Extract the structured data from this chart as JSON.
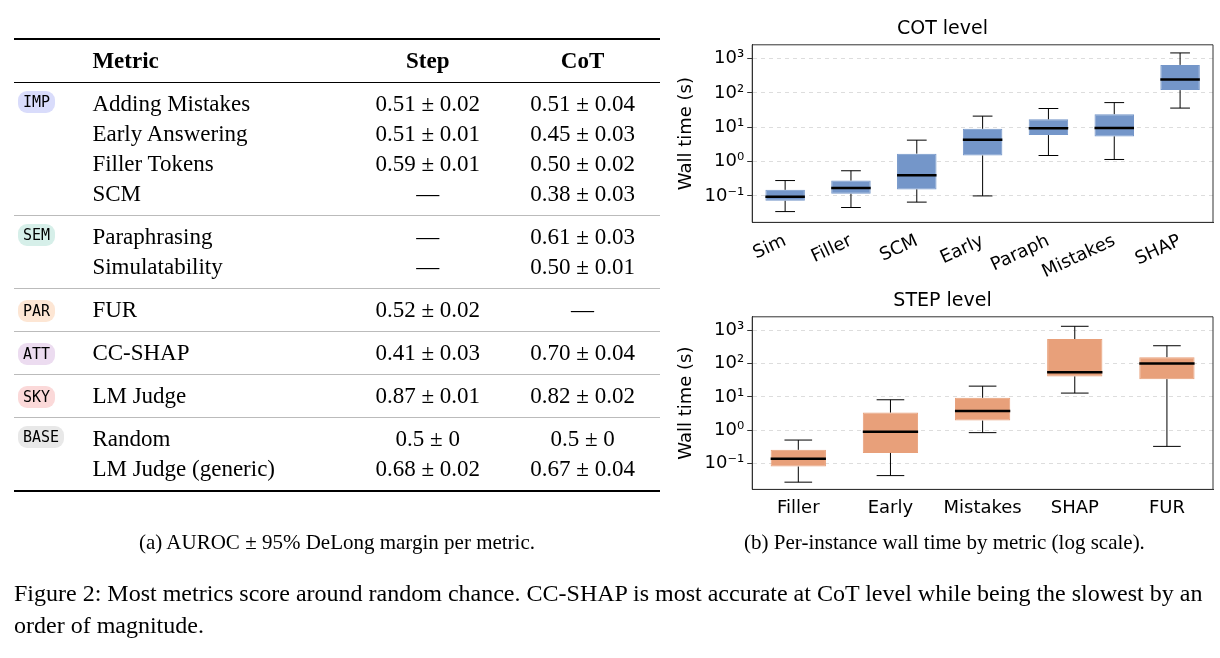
{
  "chart_data": [
    {
      "type": "other",
      "ylabel": "Metric",
      "categories": [
        "Step",
        "CoT"
      ],
      "y_categories": [
        "Adding Mistakes",
        "Early Answering",
        "Filler Tokens",
        "SCM",
        "Paraphrasing",
        "Simulatability",
        "FUR",
        "CC-SHAP",
        "LM Judge",
        "Random",
        "LM Judge (generic)"
      ],
      "y2_categories": [
        "IMP",
        null,
        null,
        null,
        "SEM",
        null,
        "PAR",
        "ATT",
        "SKY",
        "BASE",
        null
      ],
      "cell_labels": [
        [
          "0.51 ± 0.02",
          "0.51 ± 0.04"
        ],
        [
          "0.51 ± 0.01",
          "0.45 ± 0.03"
        ],
        [
          "0.59 ± 0.01",
          "0.50 ± 0.02"
        ],
        [
          "—",
          "0.38 ± 0.03"
        ],
        [
          "—",
          "0.61 ± 0.03"
        ],
        [
          "—",
          "0.50 ± 0.01"
        ],
        [
          "0.52 ± 0.02",
          "—"
        ],
        [
          "0.41 ± 0.03",
          "0.70 ± 0.04"
        ],
        [
          "0.87 ± 0.01",
          "0.82 ± 0.02"
        ],
        [
          "0.5 ± 0",
          "0.5 ± 0"
        ],
        [
          "0.68 ± 0.02",
          "0.67 ± 0.04"
        ]
      ],
      "annotations": [
        "(a) AUROC ± 95% DeLong margin per metric.",
        "Figure 2: Most metrics score around random chance. CC-SHAP is most accurate at CoT level while being the slowest by an order of magnitude."
      ]
    },
    {
      "type": "box",
      "title": "COT level",
      "ylabel": "Wall time (s)",
      "log": true,
      "grid": "y",
      "color": "#7496c9",
      "categories": [
        "Sim",
        "Filler",
        "SCM",
        "Early",
        "Paraph",
        "Mistakes",
        "SHAP"
      ],
      "ylim": [
        0.017,
        2500
      ],
      "yticks": [
        {
          "value": 0.1,
          "label": "10⁻¹"
        },
        {
          "value": 1,
          "label": "10⁰"
        },
        {
          "value": 10,
          "label": "10¹"
        },
        {
          "value": 100,
          "label": "10²"
        },
        {
          "value": 1000,
          "label": "10³"
        }
      ],
      "boxes": [
        {
          "low": 0.035,
          "q1": 0.072,
          "median": 0.095,
          "q3": 0.15,
          "high": 0.28
        },
        {
          "low": 0.046,
          "q1": 0.115,
          "median": 0.17,
          "q3": 0.28,
          "high": 0.54
        },
        {
          "low": 0.066,
          "q1": 0.155,
          "median": 0.4,
          "q3": 1.7,
          "high": 4.2
        },
        {
          "low": 0.1,
          "q1": 1.5,
          "median": 4.3,
          "q3": 9,
          "high": 21
        },
        {
          "low": 1.5,
          "q1": 5.9,
          "median": 9.3,
          "q3": 17,
          "high": 35
        },
        {
          "low": 1.15,
          "q1": 5.4,
          "median": 9.5,
          "q3": 24,
          "high": 52
        },
        {
          "low": 36,
          "q1": 120,
          "median": 245,
          "q3": 650,
          "high": 1450
        }
      ]
    },
    {
      "type": "box",
      "title": "STEP level",
      "ylabel": "Wall time (s)",
      "log": true,
      "grid": "y",
      "color": "#e8a07a",
      "categories": [
        "Filler",
        "Early",
        "Mistakes",
        "SHAP",
        "FUR"
      ],
      "ylim": [
        0.017,
        2500
      ],
      "yticks": [
        {
          "value": 0.1,
          "label": "10⁻¹"
        },
        {
          "value": 1,
          "label": "10⁰"
        },
        {
          "value": 10,
          "label": "10¹"
        },
        {
          "value": 100,
          "label": "10²"
        },
        {
          "value": 1000,
          "label": "10³"
        }
      ],
      "boxes": [
        {
          "low": 0.028,
          "q1": 0.082,
          "median": 0.14,
          "q3": 0.26,
          "high": 0.51
        },
        {
          "low": 0.044,
          "q1": 0.21,
          "median": 0.91,
          "q3": 3.4,
          "high": 8.2
        },
        {
          "low": 0.85,
          "q1": 1.95,
          "median": 3.8,
          "q3": 9.4,
          "high": 21
        },
        {
          "low": 13,
          "q1": 41,
          "median": 55,
          "q3": 540,
          "high": 1300
        },
        {
          "low": 0.33,
          "q1": 34,
          "median": 100,
          "q3": 155,
          "high": 340
        }
      ],
      "annotations": [
        "(b) Per-instance wall time by metric (log scale)."
      ]
    }
  ]
}
